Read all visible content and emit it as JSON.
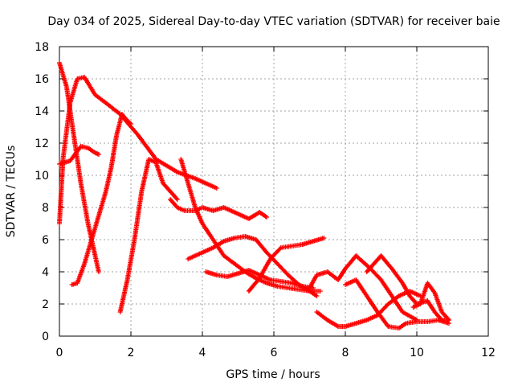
{
  "chart_data": {
    "type": "scatter",
    "title": "Day 034 of 2025, Sidereal Day-to-day VTEC variation (SDTVAR) for receiver baie",
    "xlabel": "GPS time / hours",
    "ylabel": "SDTVAR / TECUs",
    "xlim": [
      0,
      12
    ],
    "ylim": [
      0,
      18
    ],
    "x_ticks": [
      0,
      2,
      4,
      6,
      8,
      10,
      12
    ],
    "y_ticks": [
      0,
      2,
      4,
      6,
      8,
      10,
      12,
      14,
      16,
      18
    ],
    "grid": true,
    "marker": "+",
    "color": "#ff0000",
    "series": [
      {
        "name": "s1",
        "x": [
          0.0,
          0.2,
          0.4,
          0.6,
          0.8,
          1.0,
          1.1
        ],
        "y": [
          17.0,
          15.5,
          12.5,
          9.5,
          7.0,
          5.0,
          4.0
        ]
      },
      {
        "name": "s2",
        "x": [
          0.0,
          0.1,
          0.3,
          0.5,
          0.7,
          1.0,
          1.3,
          1.7,
          2.2,
          2.7,
          3.3,
          3.8,
          4.4
        ],
        "y": [
          7.0,
          11.0,
          14.5,
          16.0,
          16.1,
          15.0,
          14.5,
          13.8,
          12.5,
          11.0,
          10.2,
          9.8,
          9.2
        ]
      },
      {
        "name": "s3",
        "x": [
          0.0,
          0.3,
          0.6,
          0.8,
          1.0,
          1.1
        ],
        "y": [
          10.7,
          10.9,
          11.8,
          11.7,
          11.4,
          11.3
        ]
      },
      {
        "name": "s4",
        "x": [
          0.35,
          0.5,
          0.7,
          0.9,
          1.1,
          1.3,
          1.45,
          1.6,
          1.75,
          1.9,
          2.0
        ],
        "y": [
          3.2,
          3.3,
          4.5,
          6.0,
          7.5,
          9.0,
          10.5,
          12.5,
          13.8,
          13.4,
          13.2
        ]
      },
      {
        "name": "s5",
        "x": [
          1.7,
          1.9,
          2.1,
          2.3,
          2.5,
          2.7,
          2.9,
          3.1,
          3.3
        ],
        "y": [
          1.5,
          3.5,
          6.0,
          9.0,
          11.0,
          10.8,
          9.5,
          9.0,
          8.5
        ]
      },
      {
        "name": "s6",
        "x": [
          3.1,
          3.3,
          3.5,
          3.8,
          4.0,
          4.3,
          4.6,
          5.0,
          5.3,
          5.6,
          5.8
        ],
        "y": [
          8.5,
          8.0,
          7.8,
          7.8,
          8.0,
          7.8,
          8.0,
          7.6,
          7.3,
          7.7,
          7.4
        ]
      },
      {
        "name": "s7",
        "x": [
          3.4,
          3.6,
          3.8,
          4.0,
          4.3,
          4.6,
          4.9,
          5.2,
          5.5,
          5.8,
          6.1,
          6.4,
          6.7,
          7.0,
          7.3
        ],
        "y": [
          11.0,
          9.5,
          8.0,
          7.0,
          6.0,
          5.0,
          4.5,
          4.0,
          3.6,
          3.3,
          3.1,
          3.0,
          2.9,
          2.8,
          2.8
        ]
      },
      {
        "name": "s8",
        "x": [
          3.6,
          3.8,
          4.0,
          4.3,
          4.6,
          4.9,
          5.2,
          5.5,
          5.8,
          6.1,
          6.4,
          6.7,
          7.0,
          7.2
        ],
        "y": [
          4.8,
          5.0,
          5.2,
          5.5,
          5.9,
          6.1,
          6.2,
          6.0,
          5.2,
          4.5,
          3.8,
          3.2,
          2.8,
          2.5
        ]
      },
      {
        "name": "s9",
        "x": [
          4.1,
          4.4,
          4.7,
          5.0,
          5.3,
          5.6,
          5.9,
          6.2,
          6.5,
          6.8,
          7.1
        ],
        "y": [
          4.0,
          3.8,
          3.7,
          3.9,
          4.1,
          3.8,
          3.5,
          3.4,
          3.3,
          3.1,
          3.0
        ]
      },
      {
        "name": "s10",
        "x": [
          5.3,
          5.6,
          5.9,
          6.2,
          6.5,
          6.8,
          7.1,
          7.4
        ],
        "y": [
          2.8,
          3.6,
          4.8,
          5.5,
          5.6,
          5.7,
          5.9,
          6.1
        ]
      },
      {
        "name": "s11",
        "x": [
          7.0,
          7.2,
          7.5,
          7.8,
          8.0,
          8.3,
          8.7,
          9.0,
          9.3,
          9.6,
          10.0
        ],
        "y": [
          3.0,
          3.8,
          4.0,
          3.5,
          4.2,
          5.0,
          4.2,
          3.5,
          2.5,
          1.5,
          1.0
        ]
      },
      {
        "name": "s12",
        "x": [
          7.2,
          7.5,
          7.8,
          8.0,
          8.3,
          8.6,
          8.9,
          9.2,
          9.5,
          9.8,
          10.1
        ],
        "y": [
          1.5,
          1.0,
          0.6,
          0.6,
          0.8,
          1.0,
          1.3,
          2.0,
          2.5,
          2.8,
          2.5
        ]
      },
      {
        "name": "s13",
        "x": [
          8.0,
          8.3,
          8.6,
          8.9,
          9.2,
          9.5,
          9.7,
          10.0,
          10.3,
          10.6,
          10.9
        ],
        "y": [
          3.2,
          3.5,
          2.5,
          1.5,
          0.6,
          0.5,
          0.8,
          0.9,
          0.9,
          1.0,
          0.8
        ]
      },
      {
        "name": "s14",
        "x": [
          8.6,
          8.8,
          9.0,
          9.3,
          9.6,
          9.8,
          10.0,
          10.3,
          10.5,
          10.7,
          10.9
        ],
        "y": [
          4.0,
          4.5,
          5.0,
          4.2,
          3.3,
          2.5,
          2.0,
          2.2,
          1.5,
          1.0,
          1.0
        ]
      },
      {
        "name": "s15",
        "x": [
          9.9,
          10.1,
          10.3,
          10.5,
          10.7,
          10.9
        ],
        "y": [
          1.8,
          2.0,
          3.3,
          2.7,
          1.5,
          1.0
        ]
      }
    ]
  }
}
